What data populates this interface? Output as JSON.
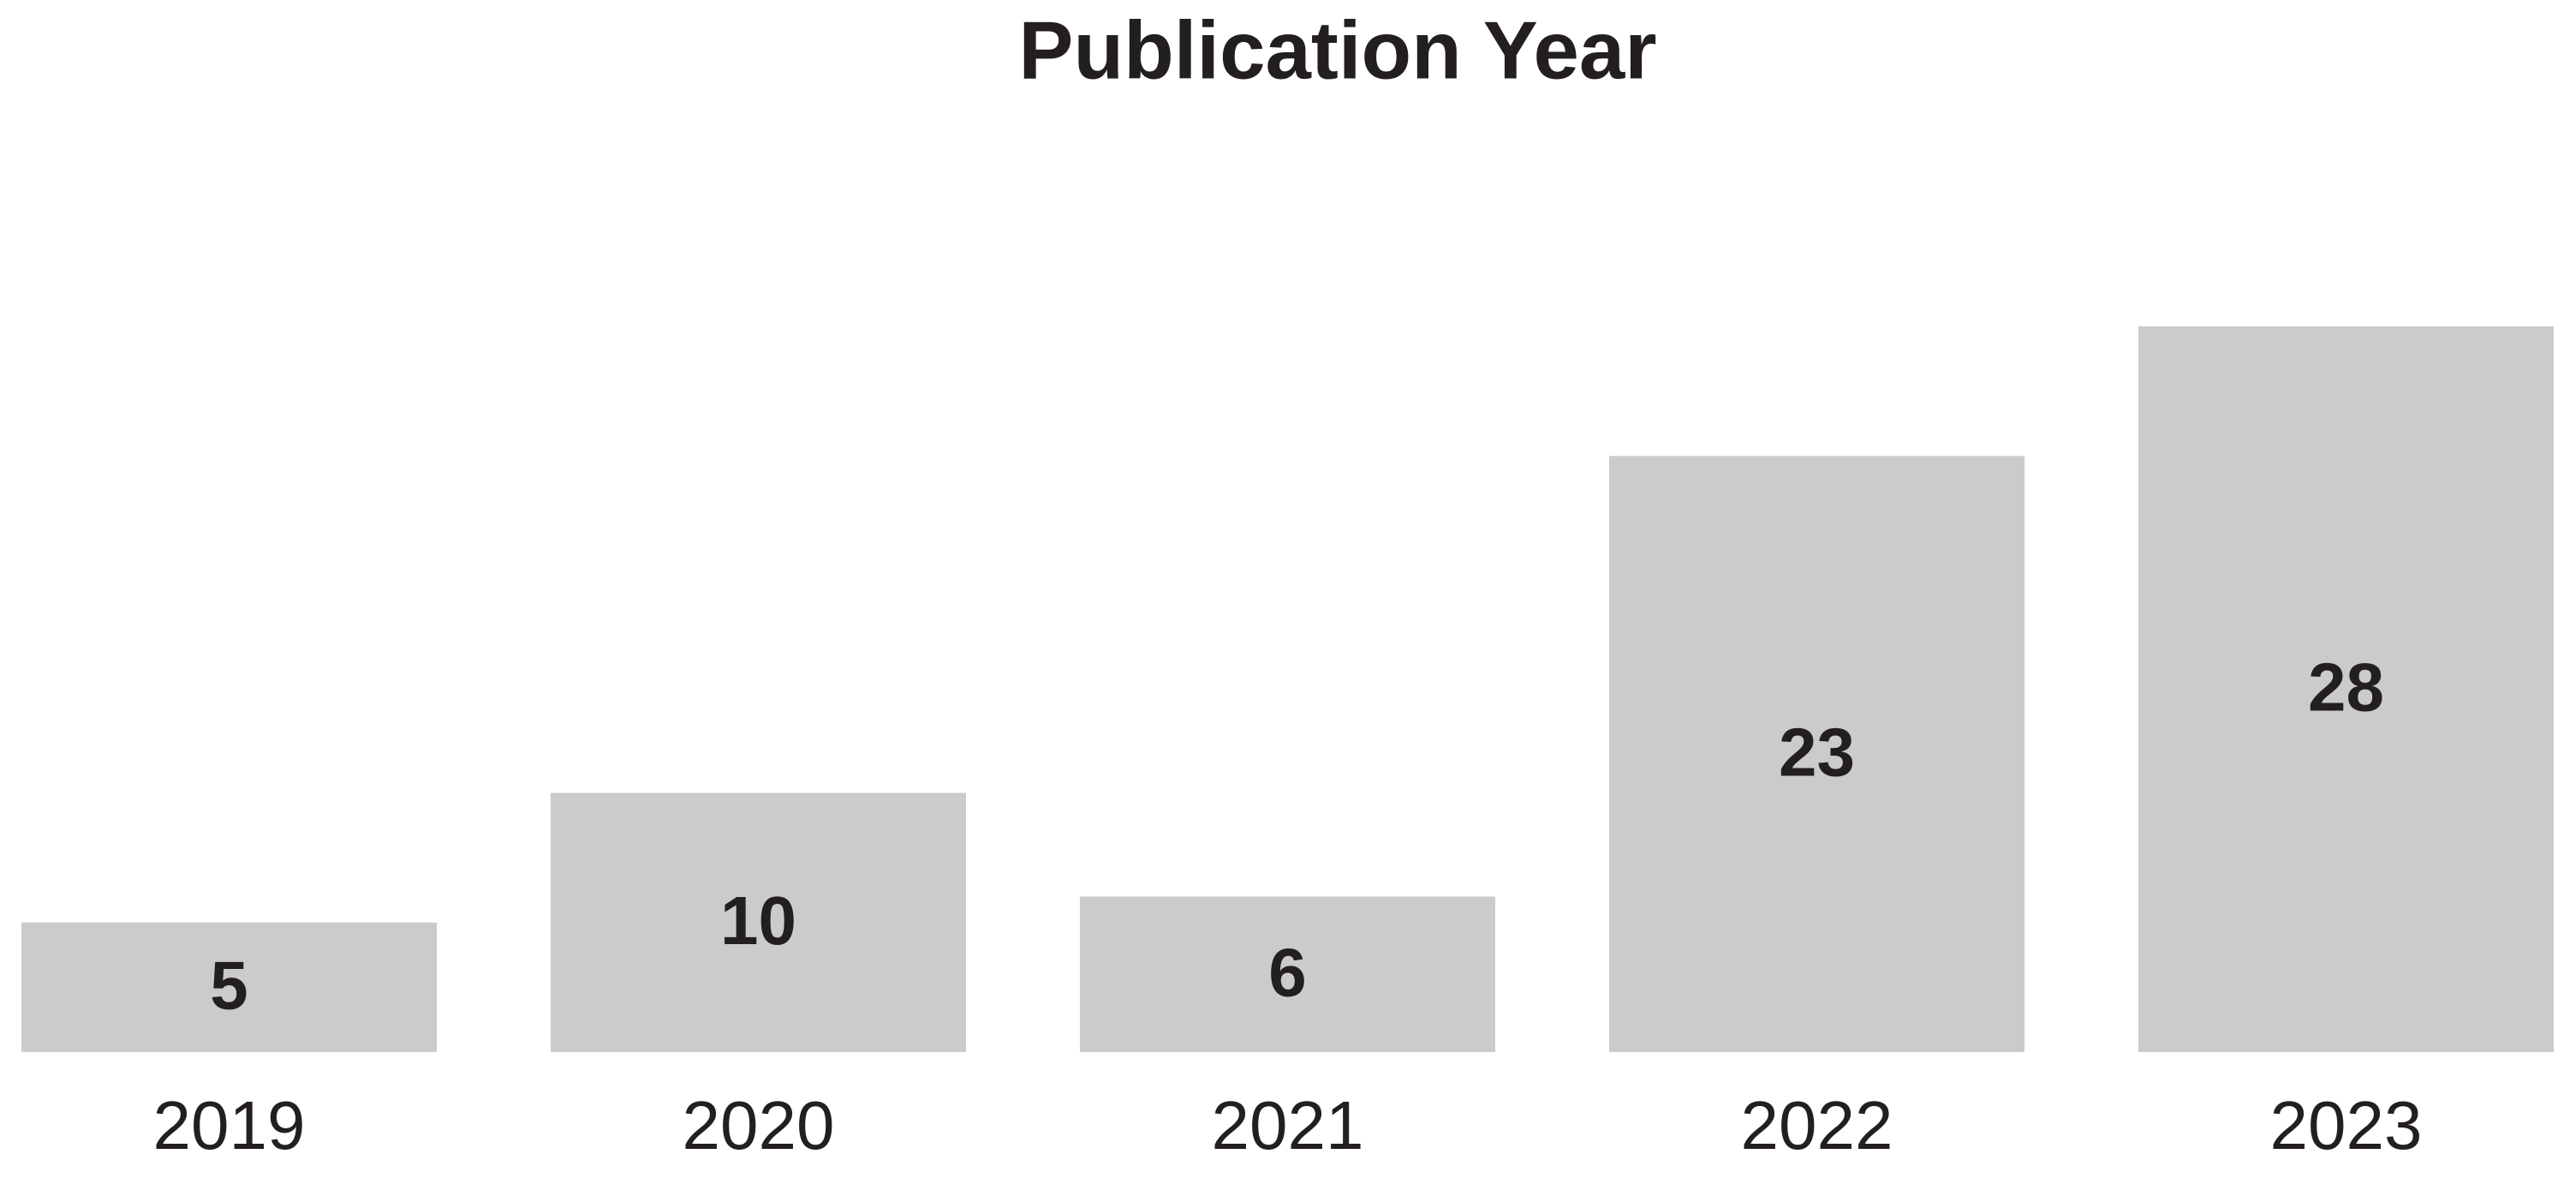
{
  "chart_data": {
    "type": "bar",
    "title": "Publication Year",
    "categories": [
      "2019",
      "2020",
      "2021",
      "2022",
      "2023"
    ],
    "values": [
      5,
      10,
      6,
      23,
      28
    ],
    "color": "#cbcbca"
  }
}
